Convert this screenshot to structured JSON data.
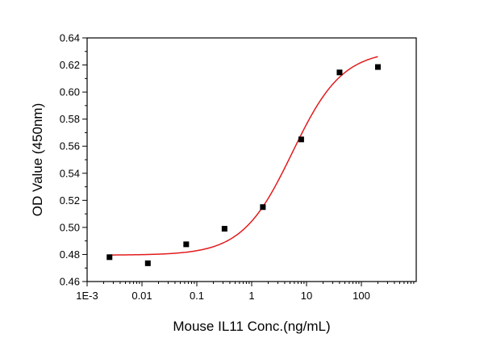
{
  "chart_data": {
    "type": "scatter",
    "xlabel": "Mouse IL11 Conc.(ng/mL)",
    "ylabel": "OD Value (450nm)",
    "x_scale": "log",
    "xlim": [
      0.001,
      1000
    ],
    "ylim": [
      0.46,
      0.64
    ],
    "x_ticks": [
      {
        "value": 0.001,
        "label": "1E-3"
      },
      {
        "value": 0.01,
        "label": "0.01"
      },
      {
        "value": 0.1,
        "label": "0.1"
      },
      {
        "value": 1,
        "label": "1"
      },
      {
        "value": 10,
        "label": "10"
      },
      {
        "value": 100,
        "label": "100"
      }
    ],
    "y_ticks": [
      {
        "value": 0.46,
        "label": "0.46"
      },
      {
        "value": 0.48,
        "label": "0.48"
      },
      {
        "value": 0.5,
        "label": "0.50"
      },
      {
        "value": 0.52,
        "label": "0.52"
      },
      {
        "value": 0.54,
        "label": "0.54"
      },
      {
        "value": 0.56,
        "label": "0.56"
      },
      {
        "value": 0.58,
        "label": "0.58"
      },
      {
        "value": 0.6,
        "label": "0.60"
      },
      {
        "value": 0.62,
        "label": "0.62"
      },
      {
        "value": 0.64,
        "label": "0.64"
      }
    ],
    "grid": false,
    "series": [
      {
        "kind": "points",
        "color": "#000000",
        "marker": "square",
        "points": [
          {
            "x": 0.00256,
            "y": 0.478
          },
          {
            "x": 0.0128,
            "y": 0.4735
          },
          {
            "x": 0.064,
            "y": 0.4875
          },
          {
            "x": 0.32,
            "y": 0.499
          },
          {
            "x": 1.6,
            "y": 0.515
          },
          {
            "x": 8,
            "y": 0.565
          },
          {
            "x": 40,
            "y": 0.6145
          },
          {
            "x": 200,
            "y": 0.6185
          }
        ]
      },
      {
        "kind": "fit",
        "color": "#e31a1c",
        "model": "4PL",
        "bottom": 0.4795,
        "top": 0.631,
        "ec50": 5.5,
        "hill": 0.95,
        "x_range": [
          0.00256,
          200
        ]
      }
    ]
  }
}
